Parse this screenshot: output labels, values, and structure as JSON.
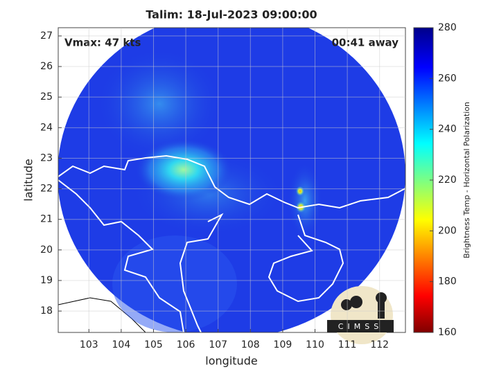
{
  "chart_data": {
    "type": "map",
    "title": "Talim: 18-Jul-2023 09:00:00",
    "annotations": [
      "Vmax: 47 kts",
      "00:41 away"
    ],
    "xlabel": "longitude",
    "ylabel": "latitude",
    "xlim": [
      102.05,
      112.8
    ],
    "ylim": [
      17.3,
      27.27
    ],
    "xticks": [
      103,
      104,
      105,
      106,
      107,
      108,
      109,
      110,
      111,
      112
    ],
    "yticks": [
      18,
      19,
      20,
      21,
      22,
      23,
      24,
      25,
      26,
      27
    ],
    "grid": true,
    "colorbar": {
      "label": "Brightness Temp - Horizontal Polarization",
      "lim": [
        160,
        280
      ],
      "ticks": [
        160,
        180,
        200,
        220,
        240,
        260,
        280
      ]
    },
    "logo": "CIMSS"
  }
}
